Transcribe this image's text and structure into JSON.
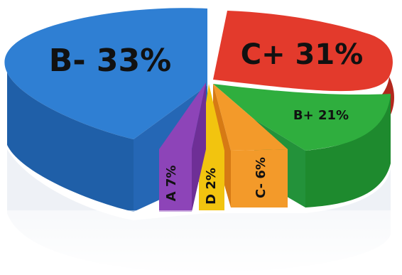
{
  "chart_data": {
    "type": "pie",
    "style": "3d-exploded",
    "title": "",
    "slices": [
      {
        "label": "B-",
        "value": 33,
        "text": "B- 33%",
        "color": "#2f7fd3",
        "side": "#1f5fa8"
      },
      {
        "label": "C+",
        "value": 31,
        "text": "C+ 31%",
        "color": "#e33a2c",
        "side": "#b3271d"
      },
      {
        "label": "B+",
        "value": 21,
        "text": "B+ 21%",
        "color": "#2fae3e",
        "side": "#1e8a2e"
      },
      {
        "label": "C-",
        "value": 6,
        "text": "C- 6%",
        "color": "#f39a2a",
        "side": "#d67a14"
      },
      {
        "label": "D",
        "value": 2,
        "text": "D 2%",
        "color": "#f2c40f",
        "side": "#d6a600"
      },
      {
        "label": "A",
        "value": 7,
        "text": "A 7%",
        "color": "#8d44b8",
        "side": "#6e2f96"
      }
    ],
    "legend": false,
    "grid": false
  }
}
